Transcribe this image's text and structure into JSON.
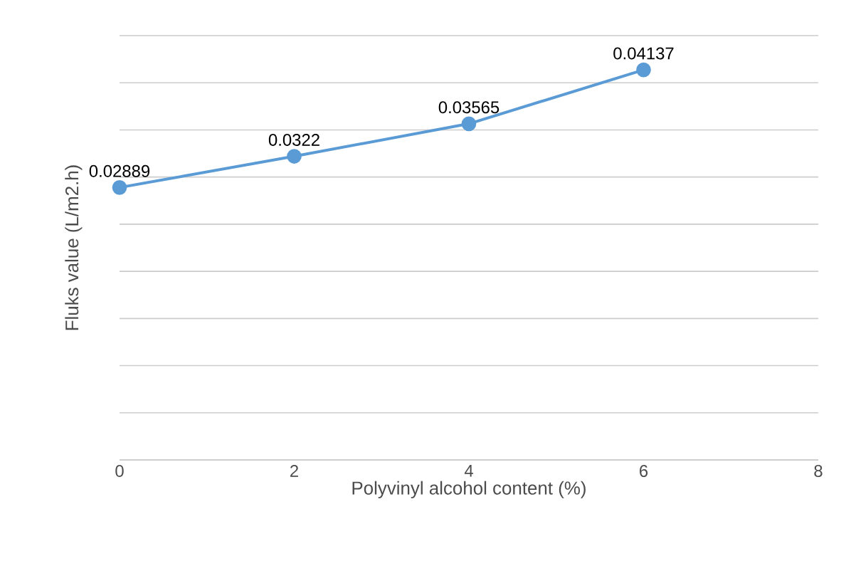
{
  "chart_data": {
    "type": "line",
    "xlabel": "Polyvinyl alcohol content (%)",
    "ylabel": "Fluks value (L/m2.h)",
    "x": [
      0,
      2,
      4,
      6
    ],
    "series": [
      {
        "color": "#5b9bd5",
        "values": [
          0.02889,
          0.0322,
          0.03565,
          0.04137
        ]
      }
    ],
    "xlim": [
      0,
      8
    ],
    "xticks": [
      0,
      2,
      4,
      6,
      8
    ],
    "ylim": [
      0,
      0.045
    ],
    "yticks": [
      {
        "value": 0,
        "label": null
      },
      {
        "value": 0.005,
        "label": null
      },
      {
        "value": 0.01,
        "label": null
      },
      {
        "value": 0.015,
        "label": null
      },
      {
        "value": 0.02,
        "label": null
      },
      {
        "value": 0.025,
        "label": null
      },
      {
        "value": 0.03,
        "label": null
      },
      {
        "value": 0.035,
        "label": null
      },
      {
        "value": 0.04,
        "label": null
      },
      {
        "value": 0.045,
        "label": null
      }
    ],
    "tick_labels": "x",
    "grid": "y",
    "marker": "circle",
    "line_style": "solid",
    "data_labels": true,
    "legend": false
  }
}
